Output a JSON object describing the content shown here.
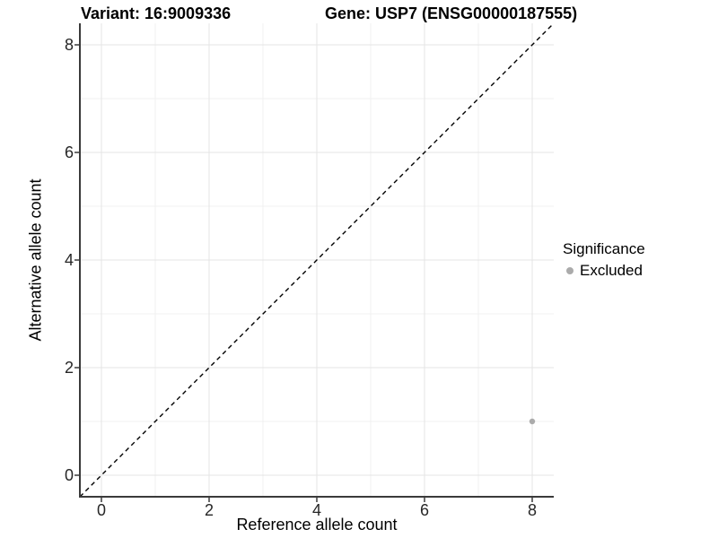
{
  "header": {
    "title_left": "Variant: 16:9009336",
    "title_right": "Gene: USP7 (ENSG00000187555)"
  },
  "legend": {
    "title": "Significance",
    "items": [
      {
        "label": "Excluded",
        "color": "#ababab"
      }
    ]
  },
  "chart_data": {
    "type": "scatter",
    "title": "Variant: 16:9009336 / Gene: USP7 (ENSG00000187555)",
    "xlabel": "Reference allele count",
    "ylabel": "Alternative allele count",
    "xlim": [
      -0.4,
      8.4
    ],
    "ylim": [
      -0.4,
      8.4
    ],
    "x_ticks": [
      0,
      2,
      4,
      6,
      8
    ],
    "y_ticks": [
      0,
      2,
      4,
      6,
      8
    ],
    "x_minor": [
      1,
      3,
      5,
      7
    ],
    "y_minor": [
      1,
      3,
      5,
      7
    ],
    "grid": "major+minor",
    "legend_position": "right",
    "reference_line": {
      "type": "identity y=x",
      "style": "dashed",
      "color": "#000000"
    },
    "series": [
      {
        "name": "Excluded",
        "color": "#ababab",
        "points": [
          {
            "x": 8,
            "y": 1
          }
        ]
      }
    ],
    "colors": {
      "background": "#ffffff",
      "axis_line": "#3a3a3a",
      "grid_major": "#e4e4e4",
      "grid_minor": "#f0f0f0",
      "tick_mark": "#3a3a3a",
      "tick_text": "#262626"
    }
  }
}
